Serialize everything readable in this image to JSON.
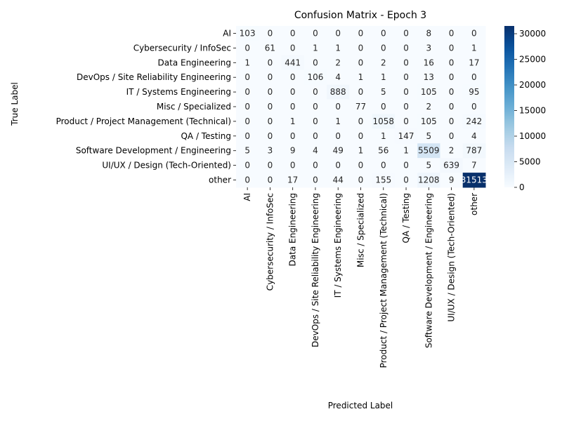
{
  "chart_data": {
    "type": "heatmap",
    "title": "Confusion Matrix - Epoch 3",
    "xlabel": "Predicted Label",
    "ylabel": "True Label",
    "labels": [
      "AI",
      "Cybersecurity / InfoSec",
      "Data Engineering",
      "DevOps / Site Reliability Engineering",
      "IT / Systems Engineering",
      "Misc / Specialized",
      "Product / Project Management (Technical)",
      "QA / Testing",
      "Software Development / Engineering",
      "UI/UX / Design (Tech-Oriented)",
      "other"
    ],
    "matrix": [
      [
        103,
        0,
        0,
        0,
        0,
        0,
        0,
        0,
        8,
        0,
        0
      ],
      [
        0,
        61,
        0,
        1,
        1,
        0,
        0,
        0,
        3,
        0,
        1
      ],
      [
        1,
        0,
        441,
        0,
        2,
        0,
        2,
        0,
        16,
        0,
        17
      ],
      [
        0,
        0,
        0,
        106,
        4,
        1,
        1,
        0,
        13,
        0,
        0
      ],
      [
        0,
        0,
        0,
        0,
        888,
        0,
        5,
        0,
        105,
        0,
        95
      ],
      [
        0,
        0,
        0,
        0,
        0,
        77,
        0,
        0,
        2,
        0,
        0
      ],
      [
        0,
        0,
        1,
        0,
        1,
        0,
        1058,
        0,
        105,
        0,
        242
      ],
      [
        0,
        0,
        0,
        0,
        0,
        0,
        1,
        147,
        5,
        0,
        4
      ],
      [
        5,
        3,
        9,
        4,
        49,
        1,
        56,
        1,
        5509,
        2,
        787
      ],
      [
        0,
        0,
        0,
        0,
        0,
        0,
        0,
        0,
        5,
        639,
        7
      ],
      [
        0,
        0,
        17,
        0,
        44,
        0,
        155,
        0,
        1208,
        9,
        31513
      ]
    ],
    "colorbar": {
      "min": 0,
      "max": 31513,
      "ticks": [
        0,
        5000,
        10000,
        15000,
        20000,
        25000,
        30000
      ],
      "colormap": "Blues",
      "low_color": "#f7fbff",
      "high_color": "#08306b"
    }
  }
}
